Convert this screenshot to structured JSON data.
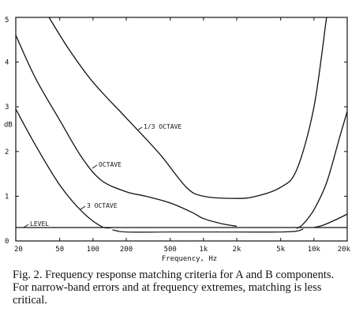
{
  "chart_data": {
    "type": "line",
    "xlabel": "Frequency, Hz",
    "ylabel": "dB",
    "x_scale": "log",
    "xlim": [
      20,
      20000
    ],
    "ylim": [
      0,
      5
    ],
    "xticks": [
      20,
      50,
      100,
      200,
      500,
      1000,
      2000,
      5000,
      10000,
      20000
    ],
    "xtick_labels": [
      "20",
      "50",
      "100",
      "200",
      "500",
      "1k",
      "2k",
      "5k",
      "10k",
      "20k"
    ],
    "yticks": [
      0,
      1,
      2,
      3,
      4,
      5
    ],
    "ytick_labels": [
      "0",
      "1",
      "2",
      "3",
      "4",
      "5"
    ],
    "grid": false,
    "series": [
      {
        "name": "1/3 OCTAVE",
        "x": [
          40,
          60,
          100,
          200,
          400,
          700,
          1000,
          2000,
          3000,
          5000,
          7000,
          10000,
          13000
        ],
        "y": [
          5.0,
          4.3,
          3.55,
          2.75,
          1.95,
          1.2,
          1.0,
          0.95,
          1.0,
          1.2,
          1.6,
          3.0,
          5.0
        ]
      },
      {
        "name": "OCTAVE",
        "x": [
          20,
          30,
          50,
          80,
          120,
          200,
          300,
          500,
          800,
          1000,
          1500,
          2000
        ],
        "y": [
          4.6,
          3.65,
          2.7,
          1.85,
          1.35,
          1.1,
          1.0,
          0.85,
          0.63,
          0.5,
          0.38,
          0.33
        ],
        "x2": [
          7000,
          8000,
          10000,
          13000,
          17000,
          20000
        ],
        "y2": [
          0.28,
          0.38,
          0.7,
          1.3,
          2.3,
          2.9
        ]
      },
      {
        "name": "3 OCTAVE",
        "x": [
          20,
          30,
          50,
          80,
          120,
          150
        ],
        "y": [
          2.95,
          2.15,
          1.25,
          0.65,
          0.32,
          0.3
        ],
        "x2": [
          10000,
          12000,
          15000,
          20000
        ],
        "y2": [
          0.3,
          0.35,
          0.45,
          0.6
        ]
      },
      {
        "name": "LEVEL",
        "x": [
          20,
          20000
        ],
        "y": [
          0.3,
          0.3
        ]
      }
    ],
    "notch": {
      "x": [
        150,
        200,
        500,
        1000,
        2000,
        5000,
        7000,
        8000
      ],
      "y": [
        0.25,
        0.2,
        0.2,
        0.2,
        0.2,
        0.2,
        0.22,
        0.27
      ]
    }
  },
  "caption": {
    "text": "Fig. 2. Frequency response matching criteria for A and B components. For narrow-band errors and at frequency extremes, matching is less critical."
  }
}
